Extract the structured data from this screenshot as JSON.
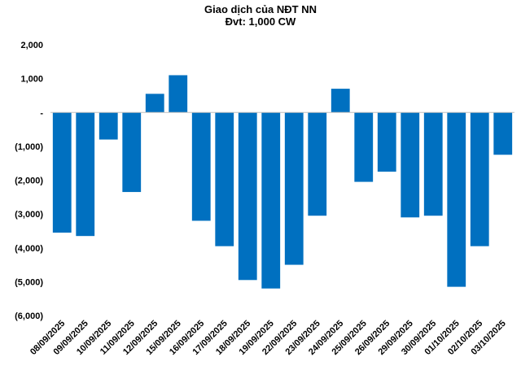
{
  "chart_data": {
    "type": "bar",
    "title": "Giao dịch của NĐT NN",
    "subtitle": "Đvt: 1,000 CW",
    "xlabel": "",
    "ylabel": "",
    "ylim": [
      -6000,
      2000
    ],
    "y_ticks": [
      2000,
      1000,
      0,
      -1000,
      -2000,
      -3000,
      -4000,
      -5000,
      -6000
    ],
    "y_tick_labels": [
      "2,000",
      "1,000",
      "-",
      "(1,000)",
      "(2,000)",
      "(3,000)",
      "(4,000)",
      "(5,000)",
      "(6,000)"
    ],
    "grid": false,
    "legend": "none",
    "bar_color": "#0070C0",
    "categories": [
      "08/09/2025",
      "09/09/2025",
      "10/09/2025",
      "11/09/2025",
      "12/09/2025",
      "15/09/2025",
      "16/09/2025",
      "17/09/2025",
      "18/09/2025",
      "19/09/2025",
      "22/09/2025",
      "23/09/2025",
      "24/09/2025",
      "25/09/2025",
      "26/09/2025",
      "29/09/2025",
      "30/09/2025",
      "01/10/2025",
      "02/10/2025",
      "03/10/2025"
    ],
    "values": [
      -3550,
      -3650,
      -800,
      -2350,
      550,
      1100,
      -3200,
      -3950,
      -4950,
      -5200,
      -4500,
      -3050,
      700,
      -2050,
      -1750,
      -3100,
      -3050,
      -5150,
      -3950,
      -1250
    ]
  }
}
